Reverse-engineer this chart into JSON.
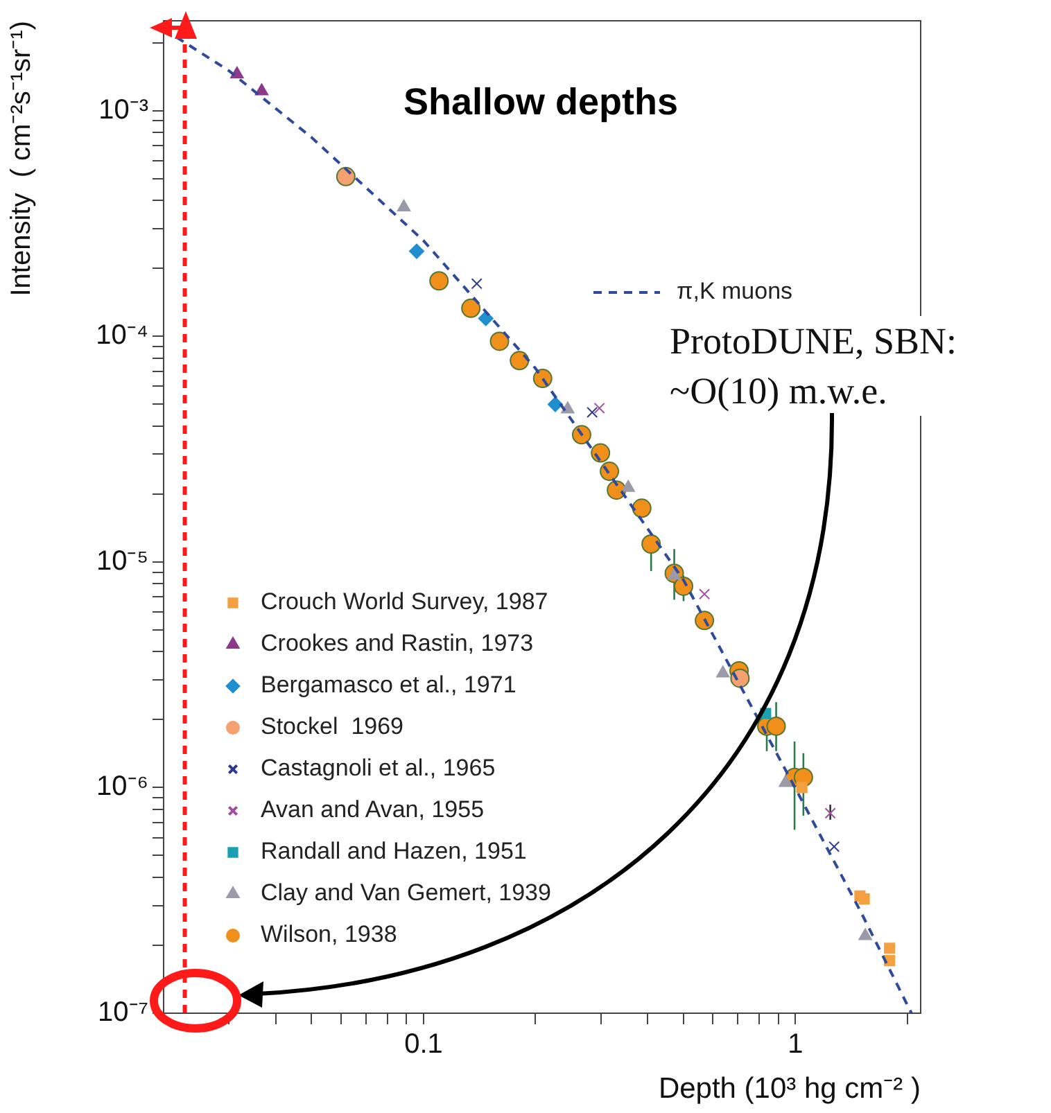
{
  "chart_data": {
    "type": "scatter",
    "title": "Shallow depths",
    "xlabel": "Depth (10³ hg cm⁻² )",
    "ylabel": "Intensity  ( cm⁻²s⁻¹sr⁻¹)",
    "log": "xy",
    "grid": false,
    "legend": "bottom left",
    "xlim": [
      0.02,
      2.17
    ],
    "ylim": [
      1e-07,
      0.0025
    ],
    "xticks": [
      {
        "value": 0.03,
        "label": null
      },
      {
        "value": 0.04,
        "label": null
      },
      {
        "value": 0.05,
        "label": null
      },
      {
        "value": 0.06,
        "label": null
      },
      {
        "value": 0.07,
        "label": null
      },
      {
        "value": 0.08,
        "label": null
      },
      {
        "value": 0.09,
        "label": null
      },
      0.1,
      {
        "value": 0.2,
        "label": null
      },
      {
        "value": 0.3,
        "label": null
      },
      {
        "value": 0.4,
        "label": null
      },
      {
        "value": 0.5,
        "label": null
      },
      {
        "value": 0.6,
        "label": null
      },
      {
        "value": 0.7,
        "label": null
      },
      {
        "value": 0.8,
        "label": null
      },
      {
        "value": 0.9,
        "label": null
      },
      1,
      {
        "value": 2,
        "label": null
      }
    ],
    "yticks": [
      {
        "value": 1e-07,
        "label": "10⁻⁷"
      },
      {
        "value": 2e-07,
        "label": null
      },
      {
        "value": 3e-07,
        "label": null
      },
      {
        "value": 4e-07,
        "label": null
      },
      {
        "value": 5e-07,
        "label": null
      },
      {
        "value": 6e-07,
        "label": null
      },
      {
        "value": 7e-07,
        "label": null
      },
      {
        "value": 8e-07,
        "label": null
      },
      {
        "value": 9e-07,
        "label": null
      },
      {
        "value": 1e-06,
        "label": "10⁻⁶"
      },
      {
        "value": 2e-06,
        "label": null
      },
      {
        "value": 3e-06,
        "label": null
      },
      {
        "value": 4e-06,
        "label": null
      },
      {
        "value": 5e-06,
        "label": null
      },
      {
        "value": 6e-06,
        "label": null
      },
      {
        "value": 7e-06,
        "label": null
      },
      {
        "value": 8e-06,
        "label": null
      },
      {
        "value": 9e-06,
        "label": null
      },
      {
        "value": 1e-05,
        "label": "10⁻⁵"
      },
      {
        "value": 2e-05,
        "label": null
      },
      {
        "value": 3e-05,
        "label": null
      },
      {
        "value": 4e-05,
        "label": null
      },
      {
        "value": 5e-05,
        "label": null
      },
      {
        "value": 6e-05,
        "label": null
      },
      {
        "value": 7e-05,
        "label": null
      },
      {
        "value": 8e-05,
        "label": null
      },
      {
        "value": 9e-05,
        "label": null
      },
      {
        "value": 0.0001,
        "label": "10⁻⁴"
      },
      {
        "value": 0.0002,
        "label": null
      },
      {
        "value": 0.0003,
        "label": null
      },
      {
        "value": 0.0004,
        "label": null
      },
      {
        "value": 0.0005,
        "label": null
      },
      {
        "value": 0.0006,
        "label": null
      },
      {
        "value": 0.0007,
        "label": null
      },
      {
        "value": 0.0008,
        "label": null
      },
      {
        "value": 0.0009,
        "label": null
      },
      {
        "value": 0.001,
        "label": "10⁻³"
      },
      {
        "value": 0.002,
        "label": null
      }
    ],
    "series": [
      {
        "name": "π,K muons",
        "type": "line",
        "color": "#2e4a9a",
        "line_style": "dashed",
        "marker": "none",
        "x": [
          0.02,
          0.03,
          0.05,
          0.1,
          0.2,
          0.5,
          1,
          1.5,
          2.05
        ],
        "values": [
          0.0023,
          0.0015,
          0.00076,
          0.000265,
          7.2e-05,
          8.3e-06,
          9.9e-07,
          2.8e-07,
          1e-07
        ]
      },
      {
        "name": "Crouch World Survey, 1987",
        "color": "#f5a040",
        "marker": "square",
        "x": [
          1.04,
          1.49,
          1.53,
          1.79,
          1.79
        ],
        "values": [
          1e-06,
          3.31e-07,
          3.21e-07,
          1.94e-07,
          1.71e-07
        ]
      },
      {
        "name": "Crookes and Rastin, 1973",
        "color": "#8b3a8b",
        "marker": "triangle",
        "x": [
          0.0315,
          0.0367
        ],
        "values": [
          0.00145,
          0.00122
        ]
      },
      {
        "name": "Bergamasco et al., 1971",
        "color": "#1f8fd0",
        "marker": "diamond",
        "x": [
          0.0958,
          0.147,
          0.226
        ],
        "values": [
          0.000238,
          0.00012,
          4.99e-05
        ]
      },
      {
        "name": "Stockel  1969",
        "color": "#f4a070",
        "marker": "circle",
        "x": [
          0.0618,
          0.709
        ],
        "values": [
          0.00051,
          3.05e-06
        ]
      },
      {
        "name": "Castagnoli et al., 1965",
        "color": "#2a3a8a",
        "marker": "cross",
        "x": [
          0.139,
          0.284,
          1.27
        ],
        "values": [
          0.000171,
          4.6e-05,
          5.47e-07
        ]
      },
      {
        "name": "Avan and Avan, 1955",
        "color": "#a050a0",
        "marker": "cross",
        "x": [
          0.297,
          0.569,
          1.24
        ],
        "values": [
          4.8e-05,
          7.2e-06,
          7.7e-07
        ],
        "errors": [
          null,
          null,
          [
            7.2e-07,
            8.4e-07
          ]
        ]
      },
      {
        "name": "Randall and Hazen, 1951",
        "color": "#1aa0b0",
        "marker": "square",
        "x": [
          0.831
        ],
        "values": [
          2.13e-06
        ]
      },
      {
        "name": "Clay and Van Gemert, 1939",
        "color": "#9a9aa8",
        "marker": "triangle",
        "x": [
          0.0885,
          0.244,
          0.355,
          0.472,
          0.638,
          0.94,
          1.54
        ],
        "values": [
          0.000373,
          4.75e-05,
          2.13e-05,
          8.7e-06,
          3.21e-06,
          1.05e-06,
          2.2e-07
        ]
      },
      {
        "name": "Wilson, 1938",
        "color": "#f0901a",
        "marker": "circle",
        "x": [
          0.11,
          0.134,
          0.16,
          0.181,
          0.209,
          0.266,
          0.299,
          0.316,
          0.33,
          0.386,
          0.409,
          0.472,
          0.5,
          0.569,
          0.705,
          0.837,
          0.887,
          0.994,
          1.05
        ],
        "values": [
          0.000176,
          0.000133,
          9.5e-05,
          7.8e-05,
          6.5e-05,
          3.66e-05,
          3.04e-05,
          2.52e-05,
          2.08e-05,
          1.73e-05,
          1.2e-05,
          8.9e-06,
          7.8e-06,
          5.5e-06,
          3.29e-06,
          1.87e-06,
          1.87e-06,
          1.11e-06,
          1.11e-06
        ],
        "errors": [
          null,
          null,
          null,
          null,
          null,
          null,
          null,
          null,
          null,
          null,
          [
            9.1e-06,
            1.33e-05
          ],
          [
            6.8e-06,
            1.14e-05
          ],
          [
            6.7e-06,
            8.7e-06
          ],
          null,
          null,
          [
            1.45e-06,
            1.87e-06
          ],
          [
            1.45e-06,
            2.39e-06
          ],
          [
            6.5e-07,
            1.6e-06
          ],
          [
            7.5e-07,
            1.42e-06
          ]
        ]
      }
    ],
    "ref_lines": [
      {
        "axis": "x",
        "value": 0.0228,
        "color": "#ff1a1a",
        "line_style": "dashed"
      }
    ],
    "annotations": [
      "ProtoDUNE, SBN: ~O(10) m.w.e."
    ]
  }
}
